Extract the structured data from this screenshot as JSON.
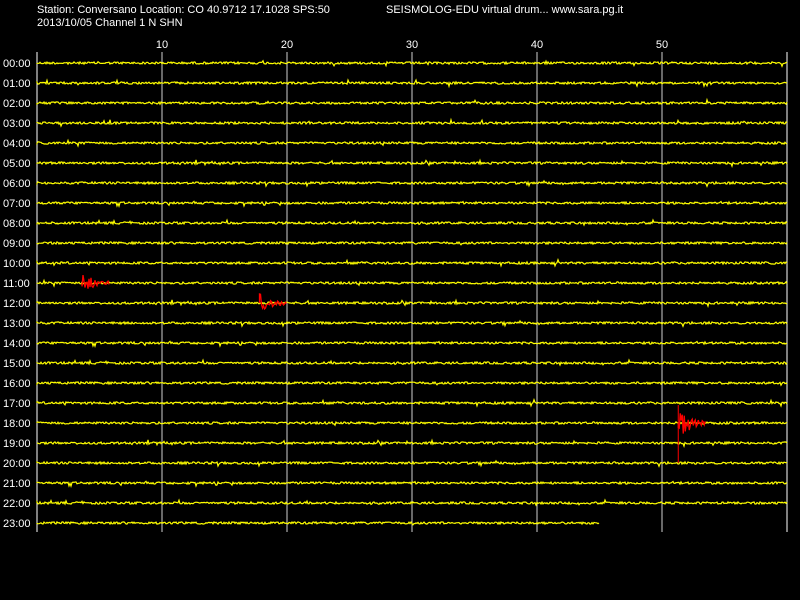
{
  "header": {
    "station_line": "Station: Conversano Location: CO 40.9712 17.1028 SPS:50",
    "app_line": "SEISMOLOG-EDU virtual drum... www.sara.pg.it",
    "date_line": "2013/10/05  Channel 1 N SHN"
  },
  "colors": {
    "background": "#000000",
    "trace": "#ffff00",
    "event": "#ff0000",
    "grid": "#ffffff",
    "text": "#ffffff"
  },
  "chart_data": {
    "type": "line",
    "title": "",
    "x_ticks": [
      10,
      20,
      30,
      40,
      50
    ],
    "xlim": [
      0,
      60
    ],
    "rows": [
      "00:00",
      "01:00",
      "02:00",
      "03:00",
      "04:00",
      "05:00",
      "06:00",
      "07:00",
      "08:00",
      "09:00",
      "10:00",
      "11:00",
      "12:00",
      "13:00",
      "14:00",
      "15:00",
      "16:00",
      "17:00",
      "18:00",
      "19:00",
      "20:00",
      "21:00",
      "22:00",
      "23:00"
    ],
    "last_row_end_minute": 45,
    "grid": true,
    "events": [
      {
        "row": "11:00",
        "start": 3.6,
        "end": 5.8,
        "color": "event"
      },
      {
        "row": "12:00",
        "start": 17.8,
        "end": 20.0,
        "color": "event"
      },
      {
        "row": "18:00",
        "start": 51.3,
        "end": 53.5,
        "color": "event"
      }
    ]
  }
}
